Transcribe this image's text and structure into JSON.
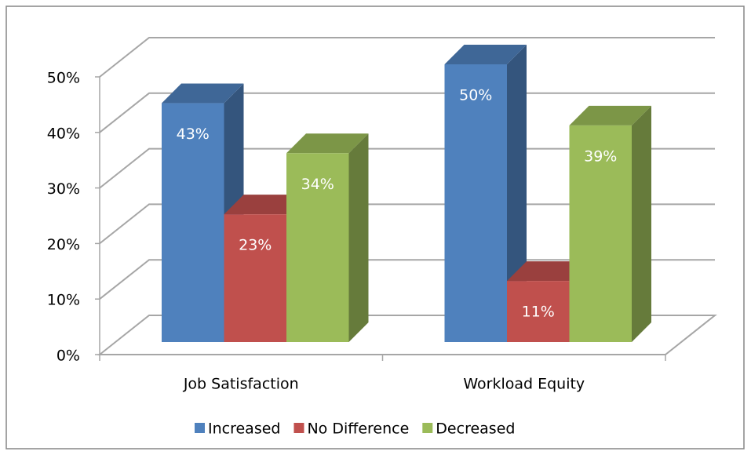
{
  "chart_data": {
    "type": "bar3d",
    "categories": [
      "Job Satisfaction",
      "Workload Equity"
    ],
    "series": [
      {
        "name": "Increased",
        "color": "#4f81bd",
        "values": [
          43,
          50
        ],
        "value_labels": [
          "43%",
          "50%"
        ]
      },
      {
        "name": "No Difference",
        "color": "#c0504d",
        "values": [
          23,
          11
        ],
        "value_labels": [
          "23%",
          "11%"
        ]
      },
      {
        "name": "Decreased",
        "color": "#9bbb59",
        "values": [
          34,
          39
        ],
        "value_labels": [
          "34%",
          "39%"
        ]
      }
    ],
    "ylim": [
      0,
      50
    ],
    "yticks": [
      {
        "value": 0,
        "label": "0%"
      },
      {
        "value": 10,
        "label": "10%"
      },
      {
        "value": 20,
        "label": "20%"
      },
      {
        "value": 30,
        "label": "30%"
      },
      {
        "value": 40,
        "label": "40%"
      },
      {
        "value": 50,
        "label": "50%"
      }
    ],
    "grid": true,
    "legend": "bottom"
  }
}
